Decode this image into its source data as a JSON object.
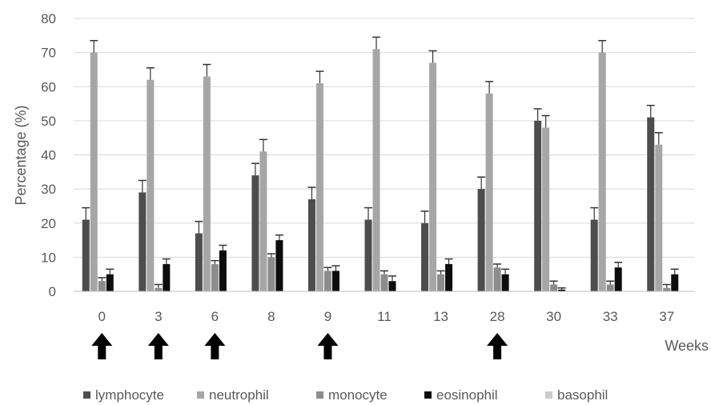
{
  "chart_data": {
    "type": "bar",
    "categories": [
      "0",
      "3",
      "6",
      "8",
      "9",
      "11",
      "13",
      "28",
      "30",
      "33",
      "37"
    ],
    "series": [
      {
        "name": "lymphocyte",
        "color": "#4d4d4d",
        "values": [
          21,
          29,
          17,
          34,
          27,
          21,
          20,
          30,
          50,
          21,
          51
        ],
        "errors": [
          3.5,
          3.5,
          3.5,
          3.5,
          3.5,
          3.5,
          3.5,
          3.5,
          3.5,
          3.5,
          3.5
        ]
      },
      {
        "name": "neutrophil",
        "color": "#a6a6a6",
        "values": [
          70,
          62,
          63,
          41,
          61,
          71,
          67,
          58,
          48,
          70,
          43
        ],
        "errors": [
          3.5,
          3.5,
          3.5,
          3.5,
          3.5,
          3.5,
          3.5,
          3.5,
          3.5,
          3.5,
          3.5
        ]
      },
      {
        "name": "monocyte",
        "color": "#8c8c8c",
        "values": [
          3,
          1,
          8,
          10,
          6,
          5,
          5,
          7,
          2,
          2,
          1
        ],
        "errors": [
          1,
          1,
          1,
          1,
          1,
          1,
          1,
          1,
          1,
          1,
          1
        ]
      },
      {
        "name": "eosinophil",
        "color": "#0d0d0d",
        "values": [
          5,
          8,
          12,
          15,
          6,
          3,
          8,
          5,
          0.5,
          7,
          5
        ],
        "errors": [
          1.5,
          1.5,
          1.5,
          1.5,
          1.5,
          1.5,
          1.5,
          1.5,
          0.5,
          1.5,
          1.5
        ]
      },
      {
        "name": "basophil",
        "color": "#cccccc",
        "values": [
          0,
          0,
          0,
          0,
          0,
          0,
          0,
          0,
          0,
          0,
          0
        ],
        "errors": [
          0,
          0,
          0,
          0,
          0,
          0,
          0,
          0,
          0,
          0,
          0
        ]
      }
    ],
    "title": "",
    "xlabel": "Weeks",
    "ylabel": "Percentage (%)",
    "ylim": [
      0,
      80
    ],
    "yticks": [
      0,
      10,
      20,
      30,
      40,
      50,
      60,
      70,
      80
    ],
    "grid": true,
    "legend_position": "bottom",
    "arrows_at": [
      "0",
      "3",
      "6",
      "9",
      "28"
    ]
  }
}
